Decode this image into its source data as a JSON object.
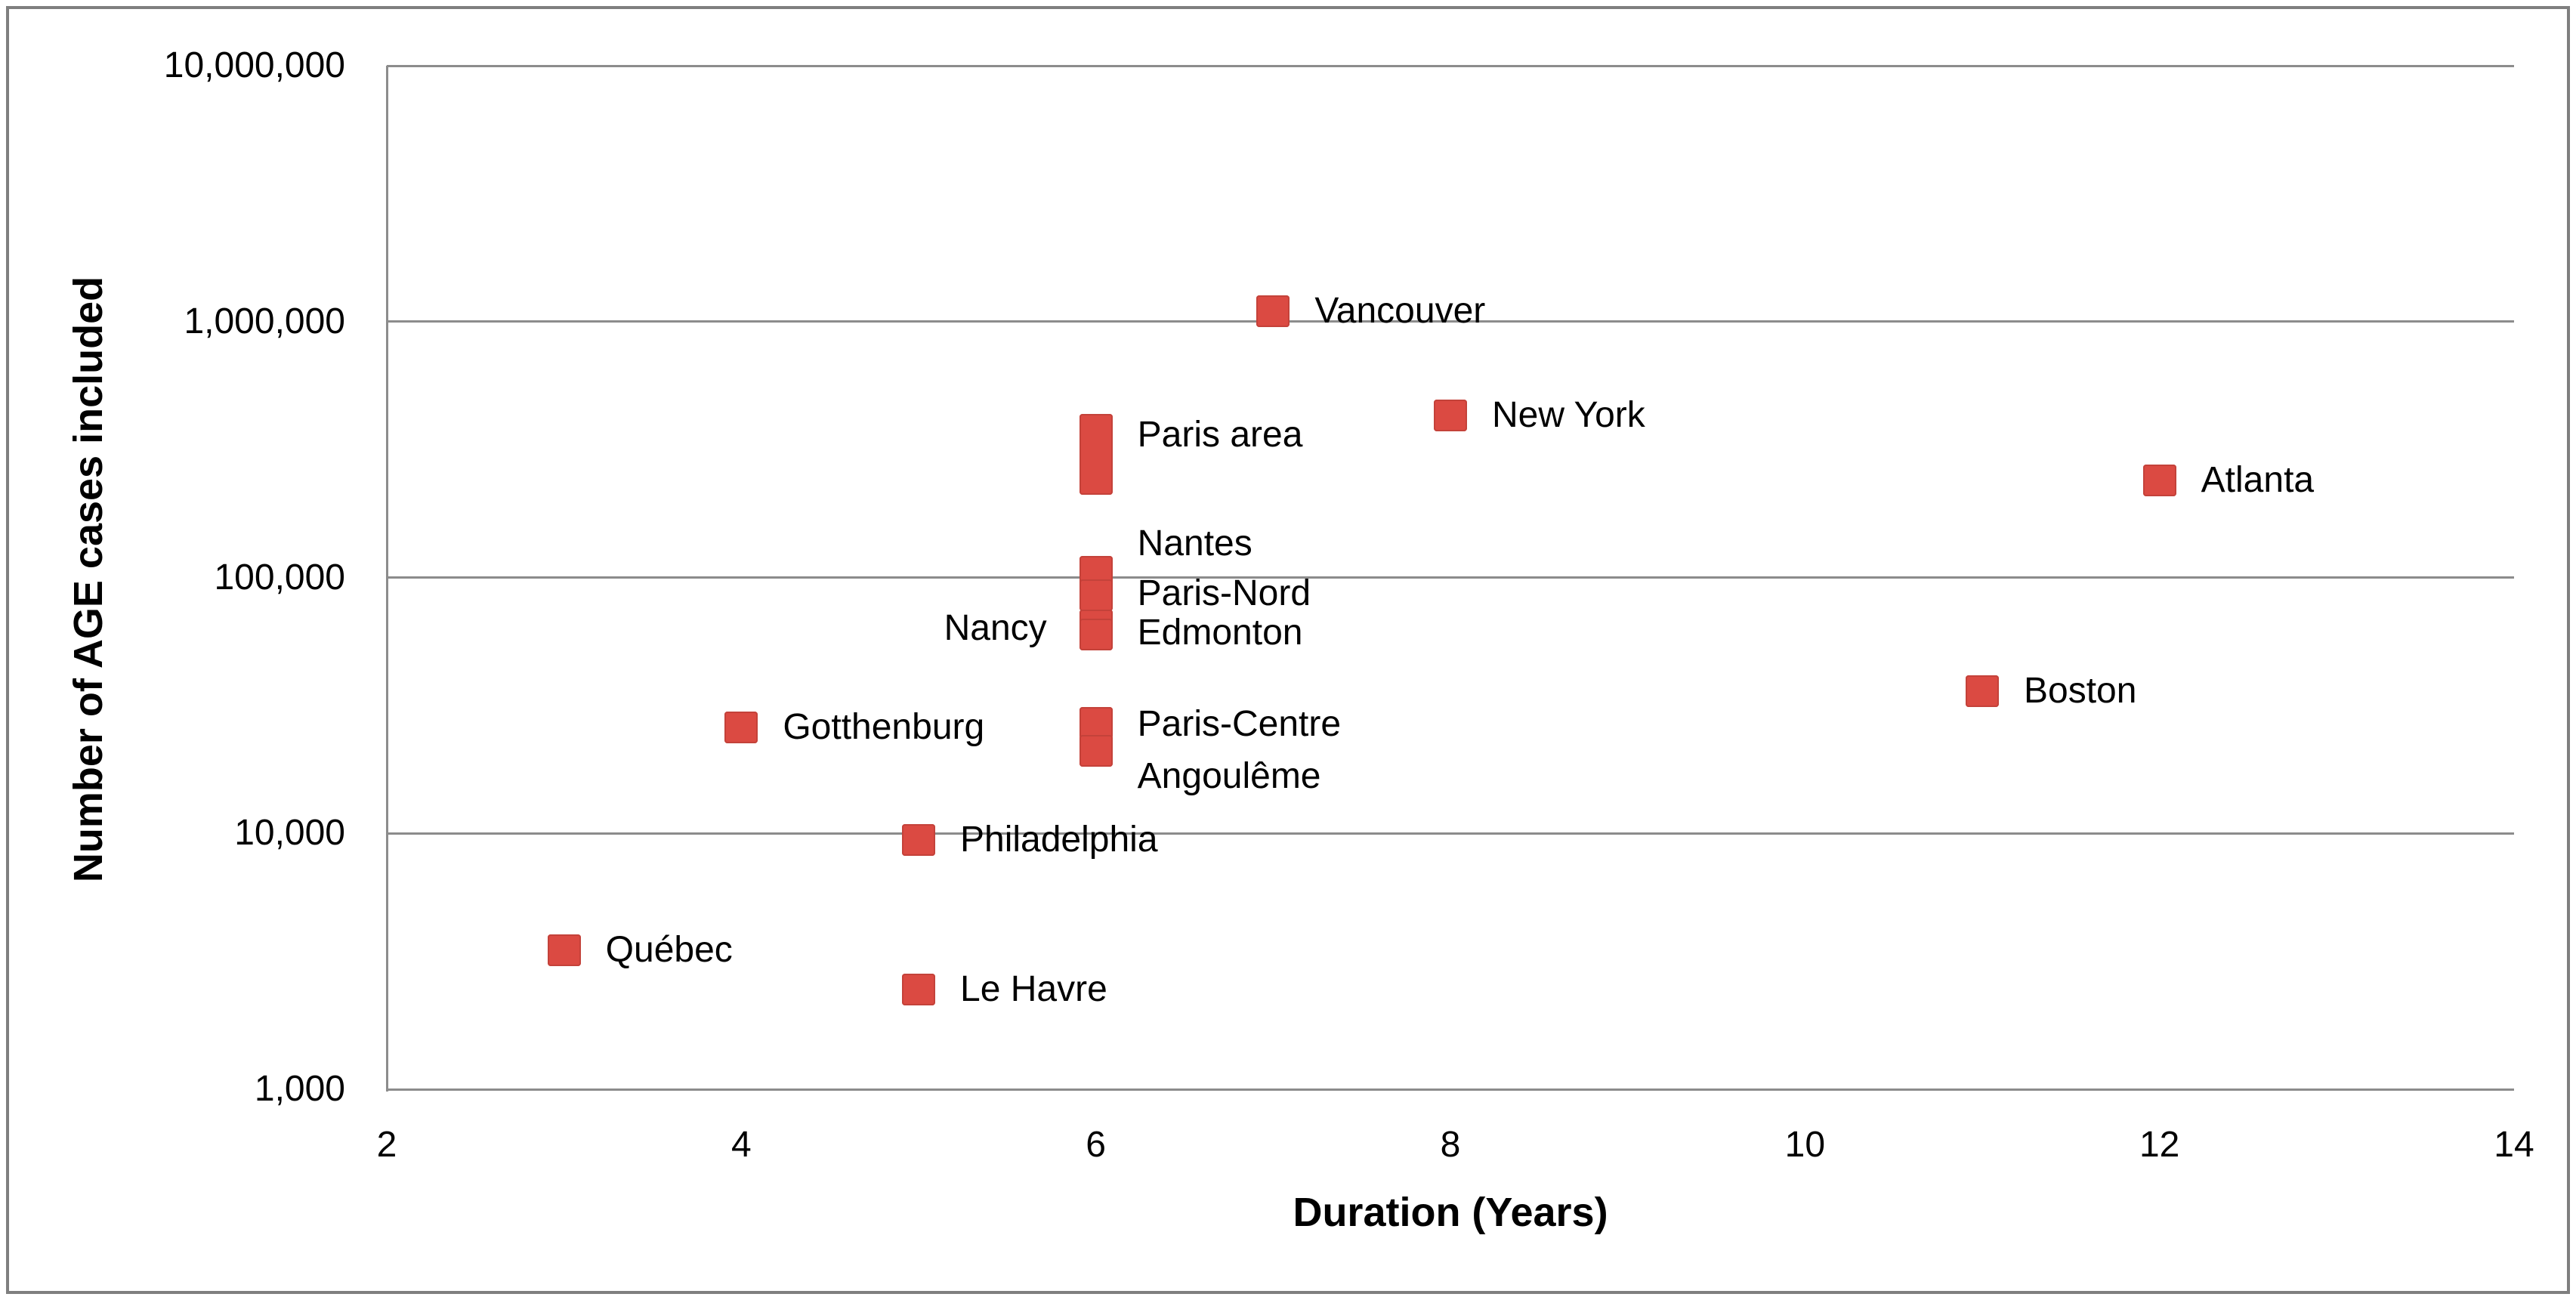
{
  "figure": {
    "background": "#ffffff",
    "border_color": "#7f7f7f"
  },
  "chart_data": {
    "type": "scatter",
    "title": "",
    "xlabel": "Duration (Years)",
    "ylabel": "Number of AGE cases included",
    "grid": true,
    "legend": false,
    "marker_color": "#db4a42",
    "marker_border_color": "#c4423a",
    "gridline_color": "#8c8c8c",
    "x_axis": {
      "min": 2,
      "max": 14,
      "ticks": [
        2,
        4,
        6,
        8,
        10,
        12,
        14
      ]
    },
    "y_axis": {
      "scale": "log10",
      "min": 1000,
      "max": 10000000,
      "ticks": [
        {
          "label": "1,000",
          "value": 1000
        },
        {
          "label": "10,000",
          "value": 10000
        },
        {
          "label": "100,000",
          "value": 100000
        },
        {
          "label": "1,000,000",
          "value": 1000000
        },
        {
          "label": "10,000,000",
          "value": 10000000
        }
      ]
    },
    "points": [
      {
        "label": "Vancouver",
        "x": 7,
        "cases": 1100000,
        "label_side": "right",
        "label_dy": 0
      },
      {
        "label": "New York",
        "x": 8,
        "cases": 430000,
        "label_side": "right",
        "label_dy": 0
      },
      {
        "label": "Atlanta",
        "x": 12,
        "cases": 240000,
        "label_side": "right",
        "label_dy": 0
      },
      {
        "label": "Paris area",
        "x": 6,
        "cases": 300000,
        "cases_span": [
          210000,
          435000
        ],
        "label_side": "right",
        "label_dy": -27
      },
      {
        "label": "Nantes",
        "x": 6,
        "cases": 105000,
        "label_side": "right",
        "label_dy": -37
      },
      {
        "label": "Paris-Nord",
        "x": 6,
        "cases": 85000,
        "label_side": "right",
        "label_dy": -2
      },
      {
        "label": "Nancy",
        "x": 6,
        "cases": 65000,
        "label_side": "left",
        "label_dy": 4
      },
      {
        "label": "Edmonton",
        "x": 6,
        "cases": 60000,
        "label_side": "right",
        "label_dy": -2
      },
      {
        "label": "Gotthenburg",
        "x": 4,
        "cases": 26000,
        "label_side": "right",
        "label_dy": 0
      },
      {
        "label": "Paris-Centre",
        "x": 6,
        "cases": 27000,
        "label_side": "right",
        "label_dy": 2
      },
      {
        "label": "Angoulême",
        "x": 6,
        "cases": 21000,
        "label_side": "right",
        "label_dy": 34
      },
      {
        "label": "Boston",
        "x": 11,
        "cases": 36000,
        "label_side": "right",
        "label_dy": 0
      },
      {
        "label": "Philadelphia",
        "x": 5,
        "cases": 9400,
        "label_side": "right",
        "label_dy": 0
      },
      {
        "label": "Québec",
        "x": 3,
        "cases": 3500,
        "label_side": "right",
        "label_dy": 0
      },
      {
        "label": "Le Havre",
        "x": 5,
        "cases": 2450,
        "label_side": "right",
        "label_dy": 0
      }
    ]
  }
}
